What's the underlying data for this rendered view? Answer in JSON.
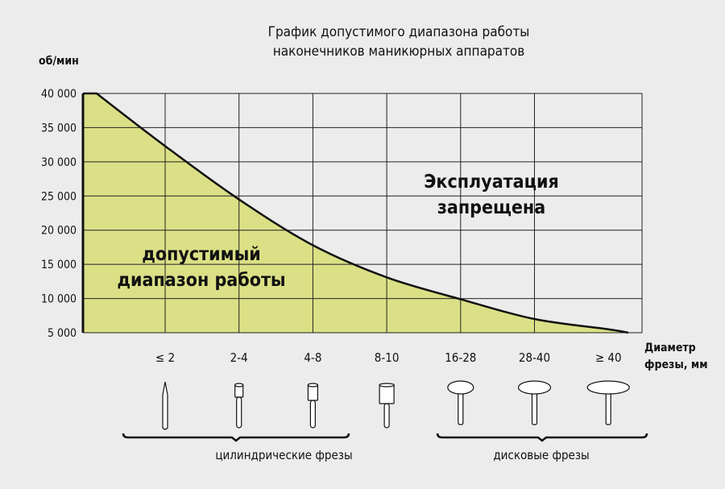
{
  "chart_data": {
    "type": "area",
    "title": [
      "График допустимого диапазона работы",
      "наконечников маникюрных аппаратов"
    ],
    "ylabel": "об/мин",
    "xlabel": [
      "Диаметр",
      "фрезы, мм"
    ],
    "ylim": [
      5000,
      40000
    ],
    "yticks": [
      5000,
      10000,
      15000,
      20000,
      25000,
      30000,
      35000,
      40000
    ],
    "ytick_labels": [
      "5 000",
      "10 000",
      "15 000",
      "20 000",
      "25 000",
      "30 000",
      "35 000",
      "40 000"
    ],
    "categories": [
      "≤ 2",
      "2-4",
      "4-8",
      "8-10",
      "16-28",
      "28-40",
      "≥ 40"
    ],
    "max_rpm": 40000,
    "values": [
      32300,
      24500,
      17800,
      13100,
      9900,
      7000,
      5500
    ],
    "end_value": 5000,
    "grid": true,
    "fill_color": "#dbe086",
    "annotations": {
      "allowed": [
        "допустимый",
        "диапазон работы"
      ],
      "forbidden": [
        "Эксплуатация",
        "запрещена"
      ]
    },
    "groups": [
      {
        "label": "цилиндрические фрезы",
        "tools": [
          "needle",
          "cylinder-small",
          "cylinder-medium",
          "cylinder-large"
        ]
      },
      {
        "label": "дисковые фрезы",
        "tools": [
          "disc-small",
          "disc-medium",
          "disc-large"
        ]
      }
    ]
  }
}
